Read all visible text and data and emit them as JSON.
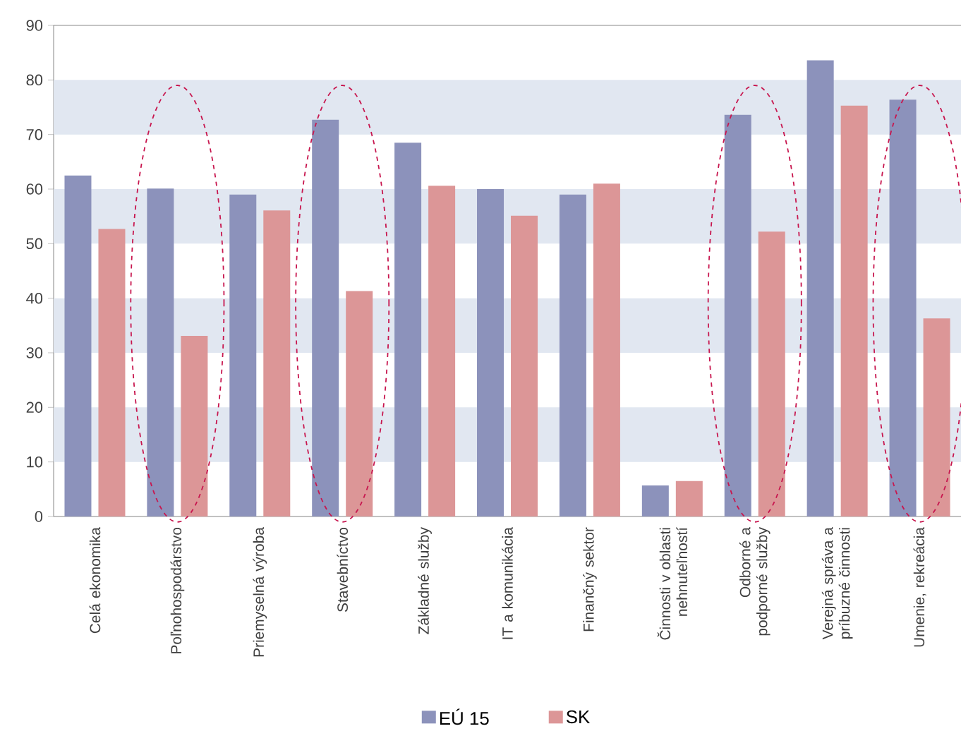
{
  "chart_data": {
    "type": "bar",
    "categories": [
      "Celá ekonomika",
      "Poľnohospodárstvo",
      "Priemyselná výroba",
      "Stavebníctvo",
      "Základné služby",
      "IT a komunikácia",
      "Finančný sektor",
      "Činnosti v oblasti nehnuteľností",
      "Odborné a podporné služby",
      "Verejná správa a príbuzné činnosti",
      "Umenie, rekreácia"
    ],
    "series": [
      {
        "name": "EÚ 15",
        "color": "#8c92bb",
        "values": [
          62.5,
          60.1,
          59.0,
          72.7,
          68.5,
          60.0,
          59.0,
          5.7,
          73.6,
          83.6,
          76.4
        ]
      },
      {
        "name": "SK",
        "color": "#dc9697",
        "values": [
          52.7,
          33.1,
          56.1,
          41.3,
          60.6,
          55.1,
          61.0,
          6.5,
          52.2,
          75.3,
          36.3
        ]
      }
    ],
    "ylim": [
      0,
      90
    ],
    "yticks": [
      0,
      10,
      20,
      30,
      40,
      50,
      60,
      70,
      80,
      90
    ],
    "bands": [
      {
        "axis": "y",
        "from": 10,
        "to": 20,
        "color": "#e1e7f1"
      },
      {
        "axis": "y",
        "from": 30,
        "to": 40,
        "color": "#e1e7f1"
      },
      {
        "axis": "y",
        "from": 50,
        "to": 60,
        "color": "#e1e7f1"
      },
      {
        "axis": "y",
        "from": 70,
        "to": 80,
        "color": "#e1e7f1"
      }
    ],
    "legend": "bottom"
  }
}
